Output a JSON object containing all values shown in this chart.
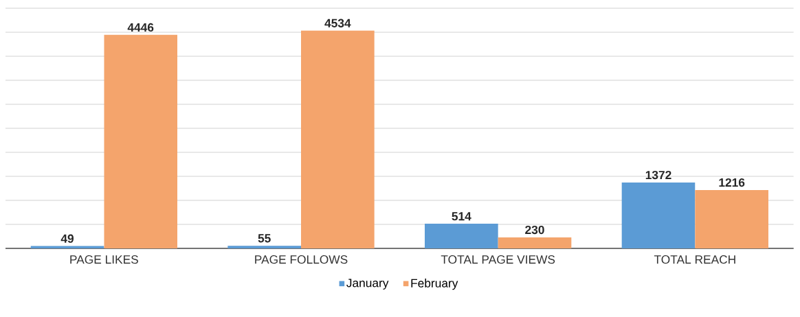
{
  "chart_data": {
    "type": "bar",
    "categories": [
      "PAGE LIKES",
      "PAGE FOLLOWS",
      "TOTAL PAGE VIEWS",
      "TOTAL REACH"
    ],
    "series": [
      {
        "name": "January",
        "color": "#5b9bd5",
        "values": [
          49,
          55,
          514,
          1372
        ]
      },
      {
        "name": "February",
        "color": "#f4a46c",
        "values": [
          4446,
          4534,
          230,
          1216
        ]
      }
    ],
    "ylim": [
      0,
      5000
    ],
    "yticks": [
      {
        "value": 0,
        "label": null
      },
      {
        "value": 500,
        "label": null
      },
      {
        "value": 1000,
        "label": null
      },
      {
        "value": 1500,
        "label": null
      },
      {
        "value": 2000,
        "label": null
      },
      {
        "value": 2500,
        "label": null
      },
      {
        "value": 3000,
        "label": null
      },
      {
        "value": 3500,
        "label": null
      },
      {
        "value": 4000,
        "label": null
      },
      {
        "value": 4500,
        "label": null
      },
      {
        "value": 5000,
        "label": null
      }
    ],
    "grid": "y",
    "legend": "bottom",
    "data_labels": true,
    "tick_labels": "x"
  }
}
